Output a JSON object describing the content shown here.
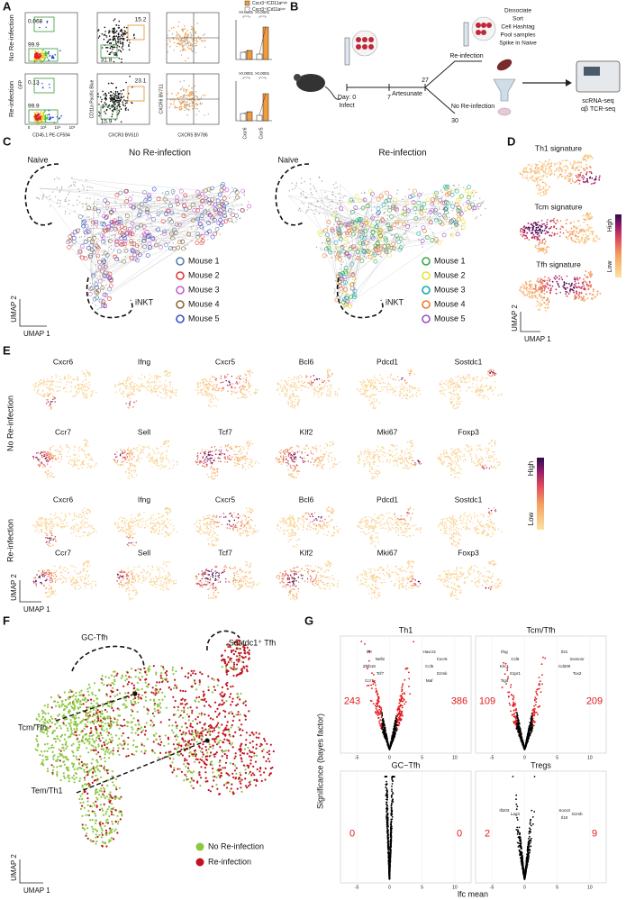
{
  "panel_a": {
    "letter": "A",
    "row_labels": [
      "No Re-infection",
      "Re-infection"
    ],
    "top_gates": [
      0.068,
      99.9,
      15.2,
      31.8
    ],
    "bottom_gates": [
      0.13,
      99.9,
      23.1,
      15.9
    ],
    "x_axis_labels": [
      "CD45.1 PE-CF594",
      "CXCR3 BV510",
      "CXCR5 BV786"
    ],
    "y_axis_labels": [
      "GFP",
      "CD11a Pacific Blue",
      "CXCR6 BV711"
    ],
    "flow_ticks": [
      "0",
      "10³",
      "10⁴",
      "10⁵"
    ],
    "legend": [
      {
        "name": "Cxcr3⁺/CD11aʰⁱᵍʰ",
        "color": "#f39a3b"
      },
      {
        "name": "Cxcr3⁺/Cd11aˡᵒʷ",
        "color": "#ffffff"
      }
    ],
    "top_pvalues": [
      ">0.0001",
      ">0.0001"
    ],
    "bottom_pvalues": [
      ">0.0001",
      ">0.0001"
    ],
    "bar_categories": [
      "Cxcr6",
      "Cxcr5"
    ]
  },
  "panel_b": {
    "letter": "B",
    "day0": "Day: 0",
    "infect": "Infect",
    "day7": "7",
    "drug": "Artesunate",
    "day27": "27",
    "day30": "30",
    "branches": [
      "Re-infection",
      "No Re-infection"
    ],
    "steps": [
      "Dissociate",
      "Sort",
      "Cell Hashtag",
      "Pool samples",
      "Spike in Naive"
    ],
    "outputs": [
      "scRNA-seq",
      "αβ TCR-seq"
    ]
  },
  "panel_c": {
    "letter": "C",
    "plots": [
      {
        "title": "No Re-infection",
        "naive": "Naive",
        "inkt": "iNKT",
        "legend": [
          {
            "name": "Mouse 1",
            "color": "#5a7fb0"
          },
          {
            "name": "Mouse 2",
            "color": "#e03a3a"
          },
          {
            "name": "Mouse 3",
            "color": "#c65bd0"
          },
          {
            "name": "Mouse 4",
            "color": "#8a6a3a"
          },
          {
            "name": "Mouse 5",
            "color": "#3b4fc4"
          }
        ]
      },
      {
        "title": "Re-infection",
        "naive": "Naive",
        "inkt": "iNKT",
        "legend": [
          {
            "name": "Mouse 1",
            "color": "#3aa845"
          },
          {
            "name": "Mouse 2",
            "color": "#e8e23a"
          },
          {
            "name": "Mouse 3",
            "color": "#1aa6a6"
          },
          {
            "name": "Mouse 4",
            "color": "#ef7a2a"
          },
          {
            "name": "Mouse 5",
            "color": "#9a4fc0"
          }
        ]
      }
    ],
    "axis_x": "UMAP 1",
    "axis_y": "UMAP 2"
  },
  "panel_d": {
    "letter": "D",
    "signatures": [
      "Th1 signature",
      "Tcm signature",
      "Tfh signature"
    ],
    "high": "High",
    "low": "Low",
    "axis_x": "UMAP 1",
    "axis_y": "UMAP 2"
  },
  "panel_e": {
    "letter": "E",
    "groups": [
      "No Re-infection",
      "Re-infection"
    ],
    "genes": [
      [
        "Cxcr6",
        "Ifng",
        "Cxcr5",
        "Bcl6",
        "Pdcd1",
        "Sostdc1"
      ],
      [
        "Ccr7",
        "Sell",
        "Tcf7",
        "Klf2",
        "Mki67",
        "Foxp3"
      ]
    ],
    "high": "High",
    "low": "Low",
    "axis_x": "UMAP 1",
    "axis_y": "UMAP 2"
  },
  "panel_f": {
    "letter": "F",
    "clusters": [
      "GC-Tfh",
      "Sostdc1⁺ Tfh",
      "Tcm/Tfh",
      "Tem/Th1"
    ],
    "legend": [
      {
        "name": "No Re-infection",
        "color": "#8dc63f"
      },
      {
        "name": "Re-infection",
        "color": "#c1121f"
      }
    ],
    "axis_x": "UMAP 1",
    "axis_y": "UMAP 2"
  },
  "panel_g": {
    "letter": "G",
    "plots": [
      {
        "title": "Th1",
        "down": 243,
        "up": 386,
        "genes": [
          "Il7r",
          "Nell2",
          "Zbtb16",
          "Tcf7",
          "Ccr7",
          "Havcr2",
          "Cxcr6",
          "Ccl5",
          "Gzmk",
          "Maf"
        ]
      },
      {
        "title": "Tcm/Tfh",
        "down": 109,
        "up": 209,
        "genes": [
          "Ifng",
          "Ccl5",
          "Klrc1",
          "S1pr1",
          "Tigit",
          "Il21",
          "Izumo1r",
          "Cd200",
          "Tox2"
        ]
      },
      {
        "title": "GC−Tfh",
        "down": 0,
        "up": 0,
        "genes": []
      },
      {
        "title": "Tregs",
        "down": 2,
        "up": 9,
        "genes": [
          "Ifi203",
          "Lag3",
          "Socs3",
          "Gzmb",
          "Il10"
        ]
      }
    ],
    "xticks": [
      -5,
      0,
      5,
      10
    ],
    "y_label": "Significance (bayes factor)",
    "x_label": "lfc mean"
  }
}
